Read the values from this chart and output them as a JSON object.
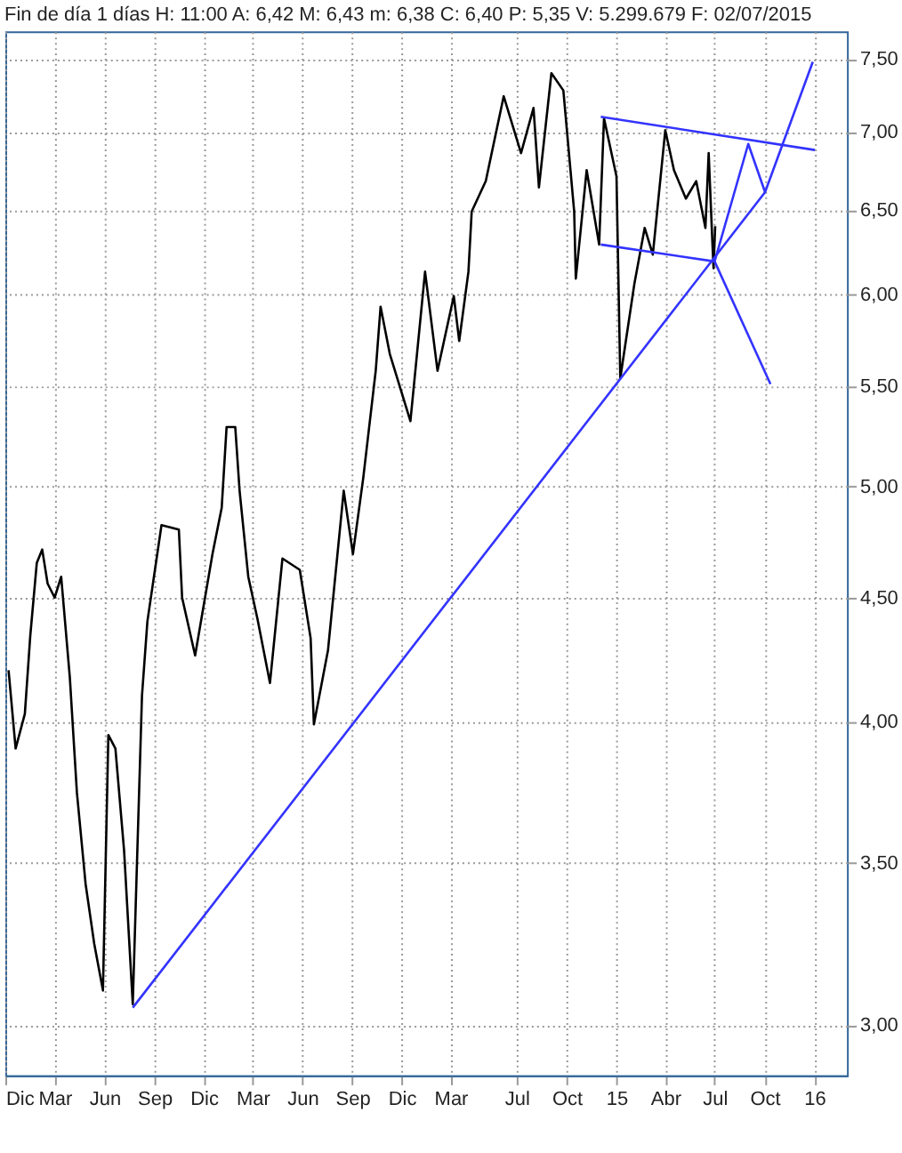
{
  "chart_data": {
    "type": "line",
    "title": "Fin de día 1 días H: 11:00 A: 6,42 M: 6,43 m: 6,38 C: 6,40 P: 5,35 V: 5.299.679 F: 02/07/2015",
    "log": "y",
    "grid": true,
    "marker": "none",
    "line_style": "solid",
    "xlim": [
      "2011-12-01",
      "2016-03-01"
    ],
    "xticks": [
      {
        "value": "2011-12-01",
        "label": "Dic"
      },
      {
        "value": "2012-03-01",
        "label": "Mar"
      },
      {
        "value": "2012-06-01",
        "label": "Jun"
      },
      {
        "value": "2012-09-01",
        "label": "Sep"
      },
      {
        "value": "2012-12-01",
        "label": "Dic"
      },
      {
        "value": "2013-03-01",
        "label": "Mar"
      },
      {
        "value": "2013-06-01",
        "label": "Jun"
      },
      {
        "value": "2013-09-01",
        "label": "Sep"
      },
      {
        "value": "2013-12-01",
        "label": "Dic"
      },
      {
        "value": "2014-03-01",
        "label": "Mar"
      },
      {
        "value": "2014-07-01",
        "label": "Jul"
      },
      {
        "value": "2014-10-01",
        "label": "Oct"
      },
      {
        "value": "2015-01-01",
        "label": "15"
      },
      {
        "value": "2015-04-01",
        "label": "Abr"
      },
      {
        "value": "2015-07-01",
        "label": "Jul"
      },
      {
        "value": "2015-10-01",
        "label": "Oct"
      },
      {
        "value": "2016-01-01",
        "label": "16"
      }
    ],
    "ylim": [
      2.86,
      7.7
    ],
    "yticks": [
      {
        "value": 3,
        "label": "3,00"
      },
      {
        "value": 3.5,
        "label": "3,50"
      },
      {
        "value": 4,
        "label": "4,00"
      },
      {
        "value": 4.5,
        "label": "4,50"
      },
      {
        "value": 5,
        "label": "5,00"
      },
      {
        "value": 5.5,
        "label": "5,50"
      },
      {
        "value": 6,
        "label": "6,00"
      },
      {
        "value": 6.5,
        "label": "6,50"
      },
      {
        "value": 7,
        "label": "7,00"
      },
      {
        "value": 7.5,
        "label": "7,50"
      }
    ],
    "series": [
      {
        "color": "#000000",
        "x": [
          "2011-12-07",
          "2011-12-20",
          "2012-01-06",
          "2012-01-16",
          "2012-01-28",
          "2012-02-07",
          "2012-02-17",
          "2012-03-01",
          "2012-03-13",
          "2012-03-29",
          "2012-04-11",
          "2012-04-27",
          "2012-05-13",
          "2012-05-29",
          "2012-06-08",
          "2012-06-21",
          "2012-07-07",
          "2012-07-23",
          "2012-08-09",
          "2012-08-19",
          "2012-09-14",
          "2012-10-16",
          "2012-10-22",
          "2012-11-15",
          "2012-12-17",
          "2013-01-03",
          "2013-01-12",
          "2013-01-28",
          "2013-02-05",
          "2013-02-21",
          "2013-03-10",
          "2013-04-02",
          "2013-04-25",
          "2013-05-27",
          "2013-06-16",
          "2013-06-22",
          "2013-07-18",
          "2013-08-16",
          "2013-09-02",
          "2013-09-21",
          "2013-10-14",
          "2013-10-23",
          "2013-11-09",
          "2013-12-17",
          "2014-01-13",
          "2014-02-05",
          "2014-03-07",
          "2014-03-17",
          "2014-04-03",
          "2014-04-09",
          "2014-05-05",
          "2014-06-07",
          "2014-07-09",
          "2014-08-01",
          "2014-08-11",
          "2014-09-03",
          "2014-09-25",
          "2014-10-15",
          "2014-10-18",
          "2014-11-07",
          "2014-11-30",
          "2014-12-09",
          "2015-01-01",
          "2015-01-08",
          "2015-02-03",
          "2015-02-22",
          "2015-03-09",
          "2015-04-01",
          "2015-04-17",
          "2015-05-09",
          "2015-05-28",
          "2015-06-14",
          "2015-06-20",
          "2015-06-27",
          "2015-06-29",
          "2015-07-02"
        ],
        "values": [
          4.2,
          3.9,
          4.03,
          4.34,
          4.65,
          4.71,
          4.56,
          4.5,
          4.59,
          4.17,
          3.74,
          3.43,
          3.24,
          3.1,
          3.95,
          3.9,
          3.54,
          3.06,
          4.1,
          4.4,
          4.82,
          4.8,
          4.5,
          4.26,
          4.69,
          4.9,
          5.29,
          5.29,
          4.98,
          4.59,
          4.41,
          4.15,
          4.67,
          4.62,
          4.33,
          3.99,
          4.28,
          4.98,
          4.69,
          5.04,
          5.58,
          5.93,
          5.67,
          5.32,
          6.13,
          5.58,
          5.99,
          5.74,
          6.13,
          6.49,
          6.68,
          7.24,
          6.86,
          7.16,
          6.64,
          7.4,
          7.28,
          6.49,
          6.09,
          6.75,
          6.29,
          7.09,
          6.71,
          5.54,
          6.06,
          6.39,
          6.23,
          7.01,
          6.75,
          6.57,
          6.68,
          6.39,
          6.86,
          6.29,
          6.15,
          6.4
        ]
      },
      {
        "color": "#3333ff",
        "x": [
          "2012-07-23",
          "2015-10-02"
        ],
        "values": [
          3.05,
          6.61
        ]
      },
      {
        "color": "#3333ff",
        "x": [
          "2014-12-03",
          "2016-01-02"
        ],
        "values": [
          7.1,
          6.88
        ]
      },
      {
        "color": "#3333ff",
        "x": [
          "2014-12-03",
          "2015-07-01"
        ],
        "values": [
          6.29,
          6.19
        ]
      },
      {
        "color": "#3333ff",
        "x": [
          "2015-07-01",
          "2015-09-01",
          "2015-10-02",
          "2015-12-29"
        ],
        "values": [
          6.19,
          6.92,
          6.61,
          7.48
        ]
      },
      {
        "color": "#3333ff",
        "x": [
          "2015-07-01",
          "2015-10-12"
        ],
        "values": [
          6.19,
          5.51
        ]
      }
    ]
  }
}
